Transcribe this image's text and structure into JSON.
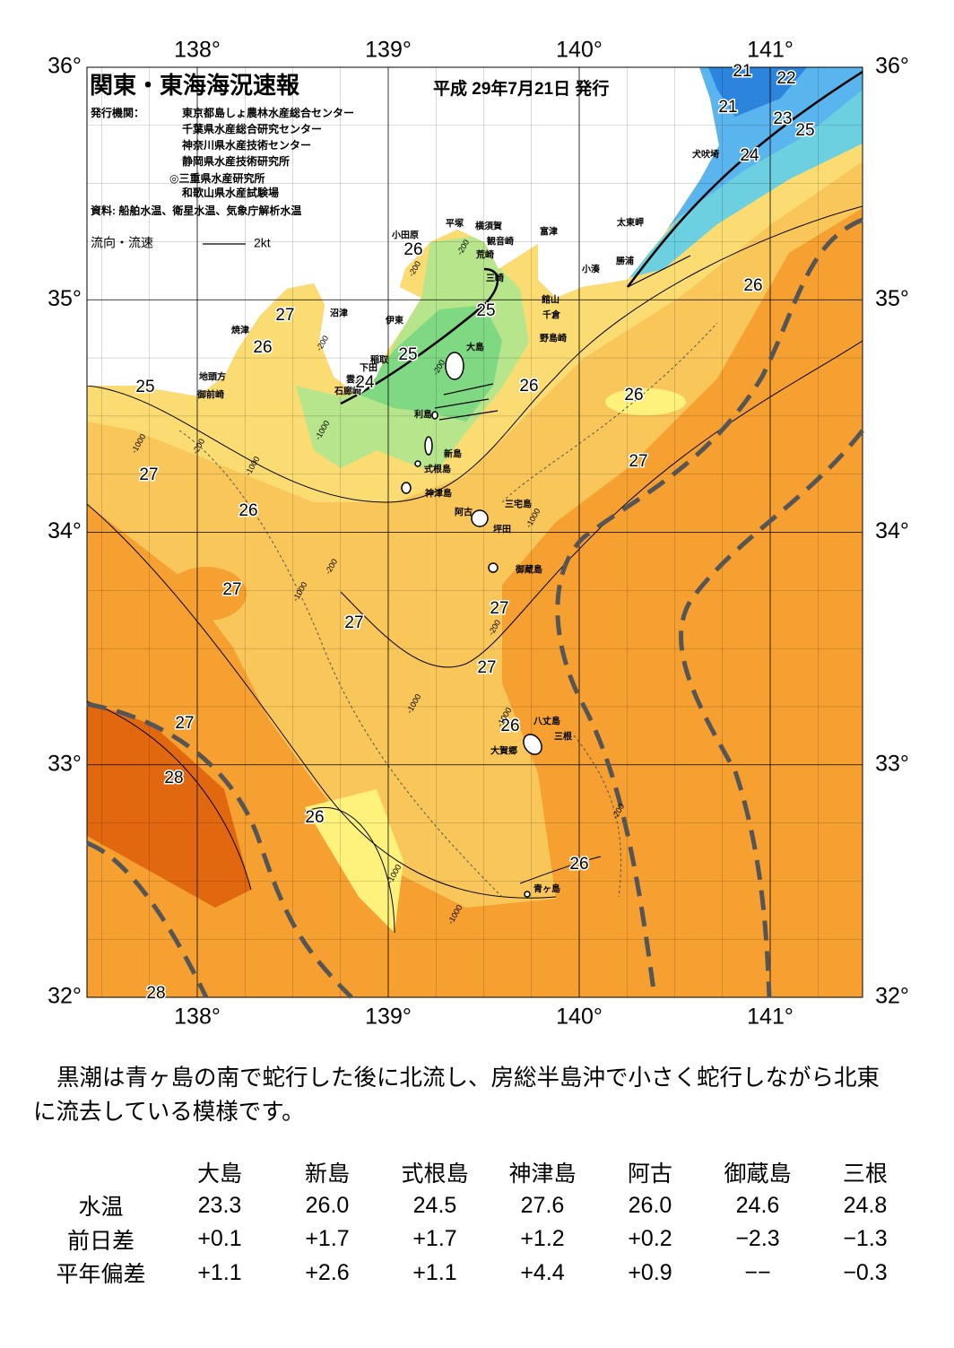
{
  "header": {
    "title": "関東・東海海況速報",
    "date": "平成 29年7月21日 発行",
    "publishers_label": "発行機関：",
    "publishers": [
      "東京都島しょ農林水産総合センター",
      "千葉県水産総合研究センター",
      "神奈川県水産技術センター",
      "静岡県水産技術研究所",
      "◎三重県水産研究所",
      "和歌山県水産試験場"
    ],
    "sources": "資料: 船舶水温、衛星水温、気象庁解析水温",
    "current_legend": "流向・流速",
    "current_scale": "2kt"
  },
  "map": {
    "lon_ticks": [
      {
        "value": 138,
        "label": "138°"
      },
      {
        "value": 139,
        "label": "139°"
      },
      {
        "value": 140,
        "label": "140°"
      },
      {
        "value": 141,
        "label": "141°"
      }
    ],
    "lat_ticks": [
      {
        "value": 36,
        "label": "36°"
      },
      {
        "value": 35,
        "label": "35°"
      },
      {
        "value": 34,
        "label": "34°"
      },
      {
        "value": 33,
        "label": "33°"
      },
      {
        "value": 32,
        "label": "32°"
      }
    ],
    "places": [
      "小田原",
      "平塚",
      "横須賀",
      "観音崎",
      "荒崎",
      "富津",
      "三崎",
      "館山",
      "千倉",
      "野島崎",
      "太東岬",
      "勝浦",
      "小湊",
      "犬吠埼",
      "沼津",
      "焼津",
      "伊東",
      "稲取",
      "下田",
      "雲見",
      "石廊崎",
      "地頭方",
      "御前崎",
      "大島",
      "利島",
      "新島",
      "式根島",
      "神津島",
      "三宅島",
      "阿古",
      "坪田",
      "御蔵島",
      "八丈島",
      "三根",
      "大賀郷",
      "青ヶ島"
    ],
    "isotherm_labels": [
      21,
      22,
      21,
      23,
      25,
      24,
      26,
      25,
      27,
      26,
      25,
      24,
      25,
      26,
      26,
      26,
      27,
      27,
      26,
      27,
      27,
      27,
      27,
      27,
      26,
      28,
      26,
      26,
      28
    ],
    "depth_labels": [
      -200,
      -200,
      -1000,
      -200,
      -1000,
      -200,
      -200,
      -1000,
      -200,
      -1000,
      -1000,
      -200,
      -1000,
      -1000,
      -1000,
      -200,
      -1000
    ]
  },
  "summary": "黒潮は青ヶ島の南で蛇行した後に北流し、房総半島沖で小さく蛇行しながら北東に流去している模様です。",
  "table": {
    "columns": [
      "大島",
      "新島",
      "式根島",
      "神津島",
      "阿古",
      "御蔵島",
      "三根"
    ],
    "rows": [
      {
        "label": "水温",
        "cells": [
          "23.3",
          "26.0",
          "24.5",
          "27.6",
          "26.0",
          "24.6",
          "24.8"
        ]
      },
      {
        "label": "前日差",
        "cells": [
          "+0.1",
          "+1.7",
          "+1.7",
          "+1.2",
          "+0.2",
          "−2.3",
          "−1.3"
        ]
      },
      {
        "label": "平年偏差",
        "cells": [
          "+1.1",
          "+2.6",
          "+1.1",
          "+4.4",
          "+0.9",
          "−−",
          "−0.3"
        ]
      }
    ]
  }
}
